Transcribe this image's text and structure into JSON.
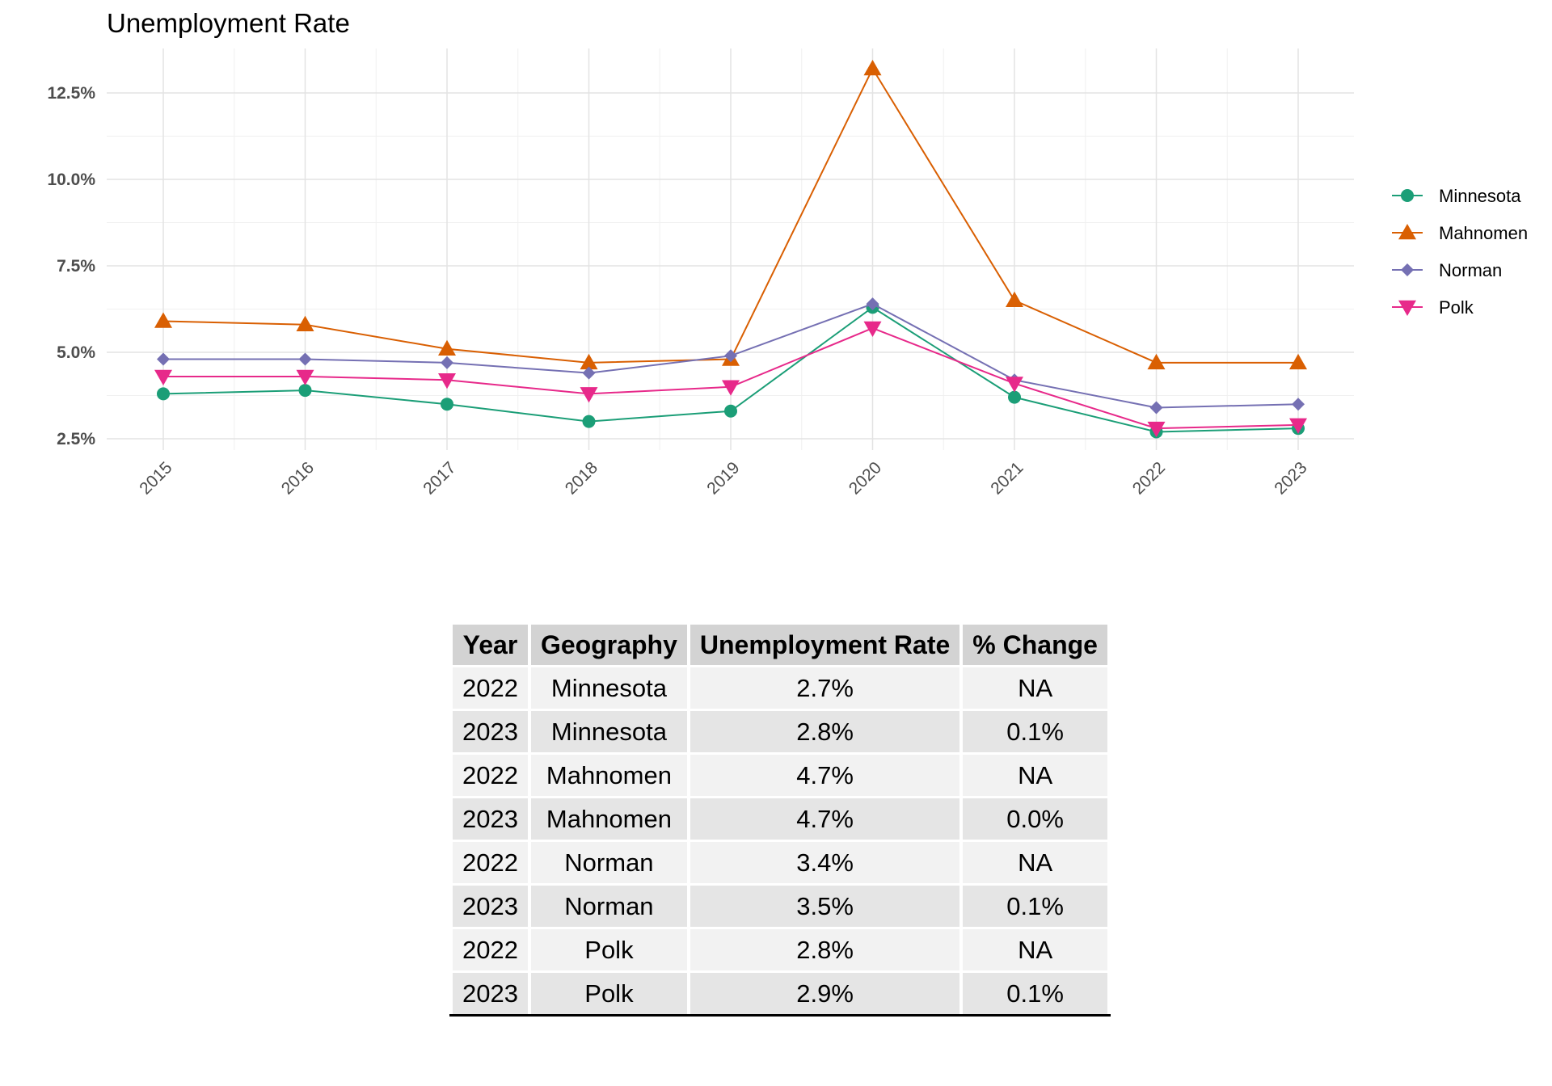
{
  "chart_data": {
    "type": "line",
    "title": "Unemployment Rate",
    "xlabel": "",
    "ylabel": "",
    "x": [
      "2015",
      "2016",
      "2017",
      "2018",
      "2019",
      "2020",
      "2021",
      "2022",
      "2023"
    ],
    "ylim": [
      2.5,
      13.3
    ],
    "yticks": [
      "2.5%",
      "5.0%",
      "7.5%",
      "10.0%",
      "12.5%"
    ],
    "ytick_values": [
      2.5,
      5.0,
      7.5,
      10.0,
      12.5
    ],
    "grid": true,
    "legend_position": "right",
    "series": [
      {
        "name": "Minnesota",
        "color": "#1b9e77",
        "marker": "circle",
        "values": [
          3.8,
          3.9,
          3.5,
          3.0,
          3.3,
          6.3,
          3.7,
          2.7,
          2.8
        ]
      },
      {
        "name": "Mahnomen",
        "color": "#d95f02",
        "marker": "triangle-up",
        "values": [
          5.9,
          5.8,
          5.1,
          4.7,
          4.8,
          13.2,
          6.5,
          4.7,
          4.7
        ]
      },
      {
        "name": "Norman",
        "color": "#7570b3",
        "marker": "diamond",
        "values": [
          4.8,
          4.8,
          4.7,
          4.4,
          4.9,
          6.4,
          4.2,
          3.4,
          3.5
        ]
      },
      {
        "name": "Polk",
        "color": "#e7298a",
        "marker": "triangle-down",
        "values": [
          4.3,
          4.3,
          4.2,
          3.8,
          4.0,
          5.7,
          4.1,
          2.8,
          2.9
        ]
      }
    ]
  },
  "table": {
    "headers": [
      "Year",
      "Geography",
      "Unemployment Rate",
      "% Change"
    ],
    "rows": [
      [
        "2022",
        "Minnesota",
        "2.7%",
        "NA"
      ],
      [
        "2023",
        "Minnesota",
        "2.8%",
        "0.1%"
      ],
      [
        "2022",
        "Mahnomen",
        "4.7%",
        "NA"
      ],
      [
        "2023",
        "Mahnomen",
        "4.7%",
        "0.0%"
      ],
      [
        "2022",
        "Norman",
        "3.4%",
        "NA"
      ],
      [
        "2023",
        "Norman",
        "3.5%",
        "0.1%"
      ],
      [
        "2022",
        "Polk",
        "2.8%",
        "NA"
      ],
      [
        "2023",
        "Polk",
        "2.9%",
        "0.1%"
      ]
    ]
  }
}
